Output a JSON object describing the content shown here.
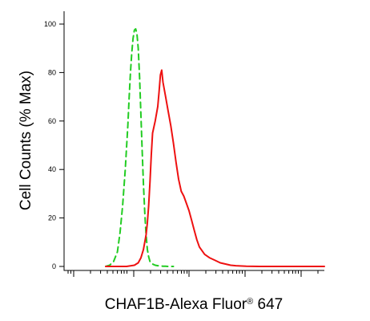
{
  "chart_data": {
    "type": "line",
    "xlabel": "CHAF1B-Alexa Fluor",
    "xlabel_sup": "®",
    "xlabel_suffix": " 647",
    "ylabel": "Cell Counts (% Max)",
    "ylim": [
      0,
      100
    ],
    "xlim": [
      0,
      100
    ],
    "y_ticks": [
      0,
      20,
      40,
      60,
      80,
      100
    ],
    "grid": false,
    "legend": "none",
    "series": [
      {
        "style": "dashed",
        "color": "#22cc22",
        "x": [
          16,
          17.5,
          19,
          20.5,
          21.5,
          22.5,
          23.5,
          24.5,
          25,
          25.5,
          26,
          26.5,
          27,
          27.5,
          28,
          28.5,
          29,
          29.5,
          30,
          30.5,
          31,
          31.5,
          32,
          32.5,
          33,
          34,
          35,
          36,
          37,
          38,
          39,
          40,
          42
        ],
        "y": [
          0,
          0.5,
          2,
          6,
          14,
          25,
          40,
          58,
          70,
          80,
          88,
          94,
          97.5,
          98,
          96,
          90,
          78,
          63,
          48,
          34,
          22,
          13,
          7,
          4,
          2,
          1,
          0.5,
          0.3,
          0.2,
          0.1,
          0.05,
          0,
          0
        ]
      },
      {
        "style": "solid",
        "color": "#ee1111",
        "x": [
          16,
          24,
          27,
          28.5,
          29.5,
          30.5,
          31.5,
          32,
          32.5,
          33,
          33.5,
          34,
          35,
          36,
          36.5,
          37,
          37.5,
          38,
          39,
          40,
          41,
          42,
          43,
          44,
          45,
          46,
          47,
          48,
          49,
          50,
          51,
          52,
          54,
          56,
          58,
          60,
          62,
          64,
          66,
          70,
          75,
          100
        ],
        "y": [
          0,
          0,
          0.5,
          1.5,
          3.5,
          7,
          13,
          18,
          25,
          35,
          46,
          55,
          60,
          66,
          72,
          79,
          81,
          76,
          70,
          64,
          58,
          51,
          43,
          36,
          31,
          29,
          26,
          23,
          19,
          15,
          11,
          8,
          5,
          3.5,
          2.5,
          1.5,
          1,
          0.5,
          0.3,
          0.1,
          0,
          0
        ]
      }
    ]
  }
}
